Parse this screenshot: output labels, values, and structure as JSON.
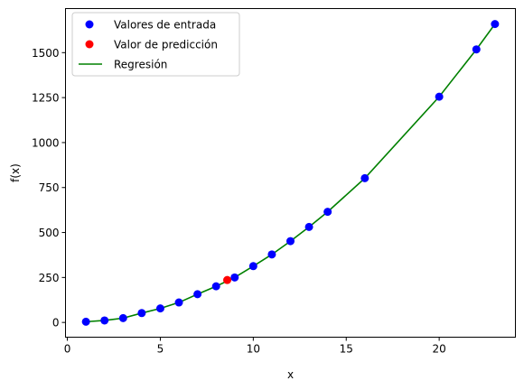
{
  "chart_data": {
    "type": "scatter",
    "title": "",
    "xlabel": "x",
    "ylabel": "f(x)",
    "xlim": [
      -0.1,
      24.1
    ],
    "ylim": [
      -82,
      1745
    ],
    "xticks": [
      0,
      5,
      10,
      15,
      20
    ],
    "yticks": [
      0,
      250,
      500,
      750,
      1000,
      1250,
      1500
    ],
    "grid": false,
    "legend_position": "upper-left",
    "series": [
      {
        "name": "Valores de entrada",
        "kind": "scatter",
        "color": "#0000ff",
        "x": [
          1,
          2,
          3,
          4,
          5,
          6,
          7,
          8,
          9,
          10,
          11,
          12,
          13,
          14,
          16,
          20,
          22,
          23
        ],
        "y": [
          4,
          11,
          24,
          52,
          78,
          111,
          157,
          201,
          250,
          313,
          378,
          452,
          531,
          615,
          802,
          1255,
          1518,
          1659
        ]
      },
      {
        "name": "Valor de predicción",
        "kind": "scatter",
        "color": "#ff0000",
        "x": [
          8.6
        ],
        "y": [
          236
        ]
      },
      {
        "name": "Regresión",
        "kind": "line",
        "color": "#008000",
        "x": [
          1,
          2,
          3,
          4,
          5,
          6,
          7,
          8,
          9,
          10,
          11,
          12,
          13,
          14,
          16,
          20,
          22,
          23
        ],
        "y": [
          4,
          11,
          24,
          52,
          78,
          111,
          157,
          201,
          250,
          313,
          378,
          452,
          531,
          615,
          802,
          1255,
          1518,
          1659
        ]
      }
    ]
  }
}
